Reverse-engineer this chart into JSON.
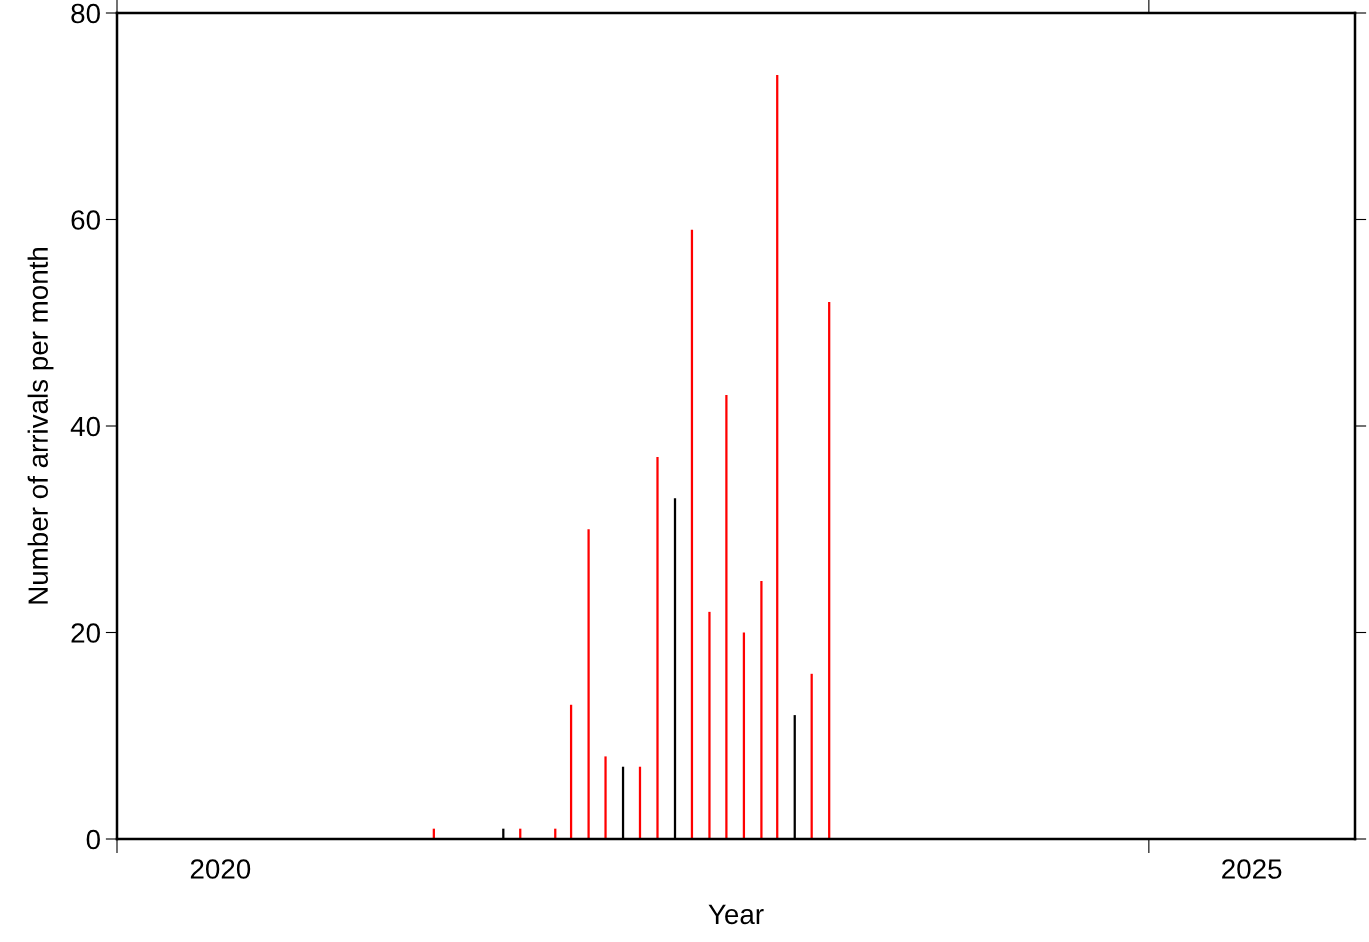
{
  "chart_data": {
    "type": "bar",
    "xlabel": "Year",
    "ylabel": "Number of arrivals per month",
    "x": [
      "2021-07-15",
      "2021-11-15",
      "2021-12-15",
      "2022-02-15",
      "2022-03-15",
      "2022-04-15",
      "2022-05-15",
      "2022-06-15",
      "2022-07-15",
      "2022-08-15",
      "2022-09-15",
      "2022-10-15",
      "2022-11-15",
      "2022-12-15",
      "2023-01-15",
      "2023-02-15",
      "2023-03-15",
      "2023-04-15",
      "2023-05-15",
      "2023-06-15"
    ],
    "values": [
      1,
      1,
      1,
      1,
      13,
      30,
      8,
      7,
      7,
      37,
      33,
      59,
      22,
      43,
      20,
      25,
      74,
      12,
      16,
      52
    ],
    "colors": [
      "#ff0000",
      "#000000",
      "#ff0000",
      "#ff0000",
      "#ff0000",
      "#ff0000",
      "#ff0000",
      "#000000",
      "#ff0000",
      "#ff0000",
      "#000000",
      "#ff0000",
      "#ff0000",
      "#ff0000",
      "#ff0000",
      "#ff0000",
      "#ff0000",
      "#000000",
      "#ff0000",
      "#ff0000"
    ],
    "xlim": [
      "2020-01-01",
      "2026-01-01"
    ],
    "xticks": [
      {
        "value": "2020-01-01",
        "label": null
      },
      {
        "value": "2020-07-02",
        "label": "2020"
      },
      {
        "value": "2025-01-01",
        "label": null
      },
      {
        "value": "2025-07-02",
        "label": "2025"
      }
    ],
    "ylim": [
      0,
      80
    ],
    "yticks": [
      0,
      20,
      40,
      60,
      80
    ],
    "grid": false,
    "legend": false
  }
}
